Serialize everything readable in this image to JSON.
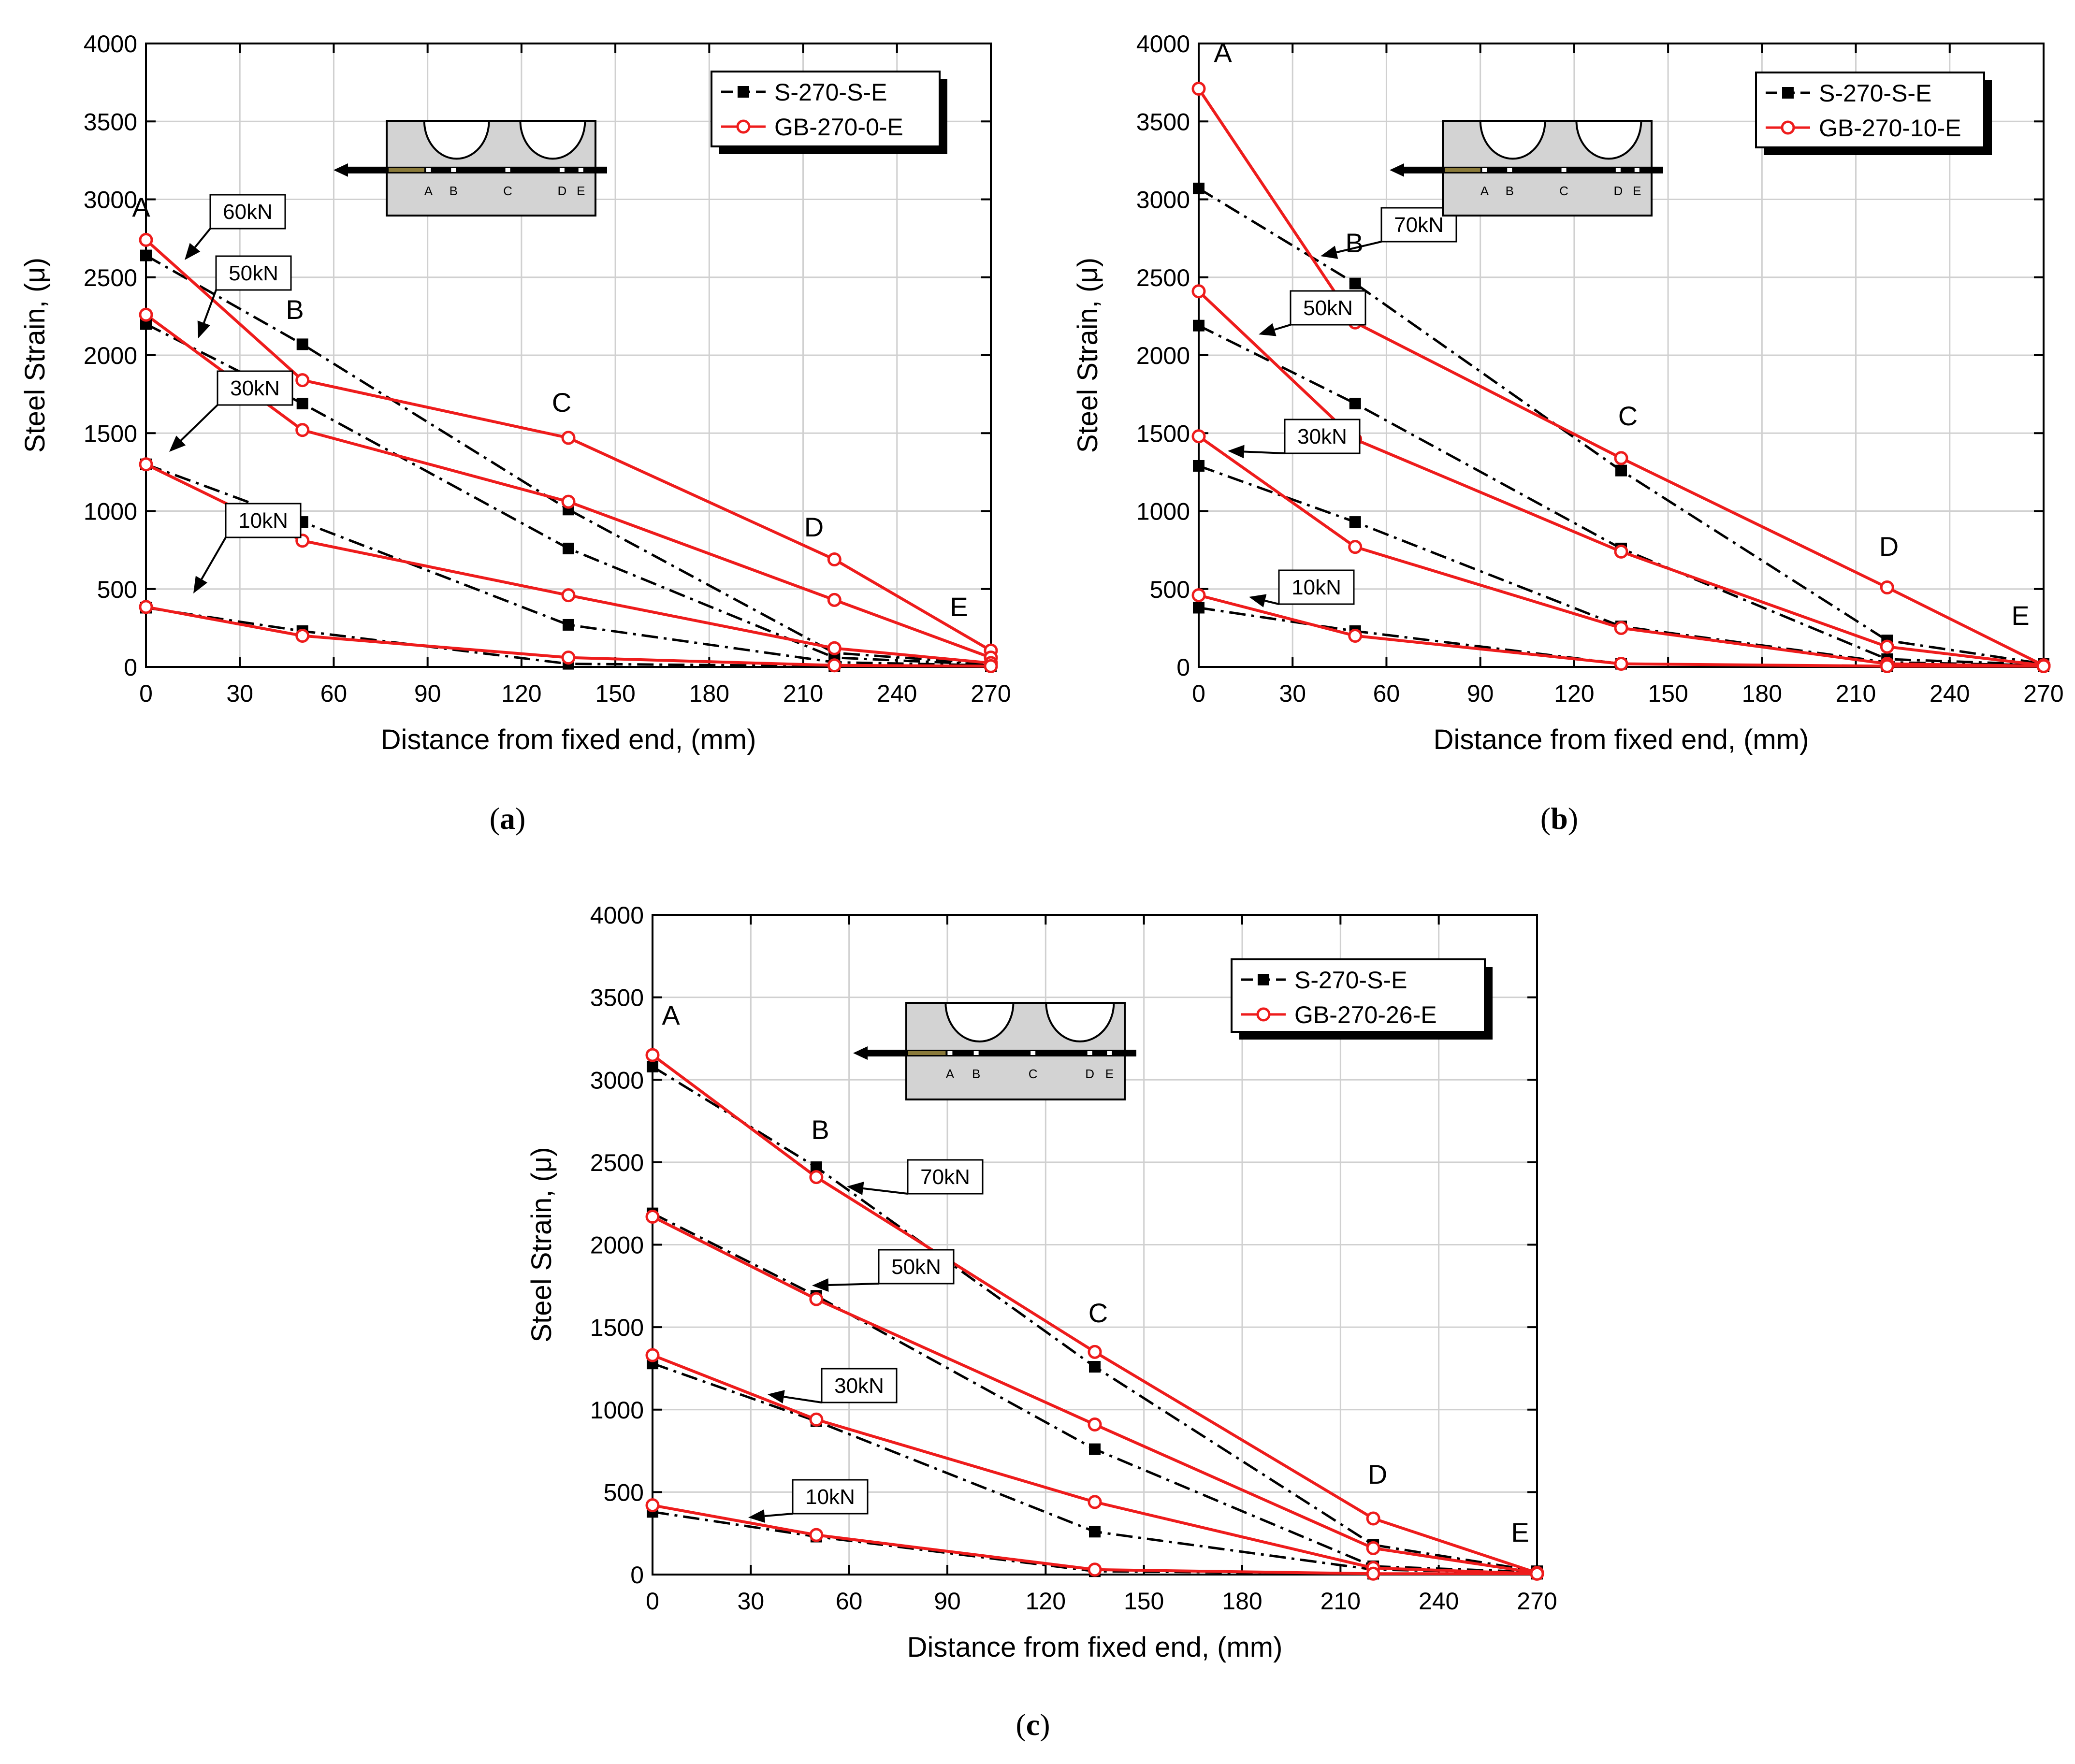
{
  "chart_data": [
    {
      "type": "line",
      "panel_label": "a",
      "xlabel": "Distance from fixed end, (mm)",
      "ylabel": "Steel Strain, (μ)",
      "xlim": [
        0,
        270
      ],
      "ylim": [
        0,
        4000
      ],
      "xticks": [
        0,
        30,
        60,
        90,
        120,
        150,
        180,
        210,
        240,
        270
      ],
      "yticks": [
        0,
        500,
        1000,
        1500,
        2000,
        2500,
        3000,
        3500,
        4000
      ],
      "grid": true,
      "legend": {
        "position": "top-right",
        "entries": [
          "S-270-S-E",
          "GB-270-0-E"
        ]
      },
      "point_labels": [
        "A",
        "B",
        "C",
        "D",
        "E"
      ],
      "series": [
        {
          "name": "S-270-S-E",
          "load": "60kN",
          "x": [
            0,
            50,
            135,
            220,
            270
          ],
          "y": [
            2640,
            2070,
            1010,
            90,
            20
          ]
        },
        {
          "name": "S-270-S-E",
          "load": "50kN",
          "x": [
            0,
            50,
            135,
            220,
            270
          ],
          "y": [
            2200,
            1690,
            760,
            60,
            15
          ]
        },
        {
          "name": "S-270-S-E",
          "load": "30kN",
          "x": [
            0,
            50,
            135,
            220,
            270
          ],
          "y": [
            1300,
            930,
            270,
            30,
            10
          ]
        },
        {
          "name": "S-270-S-E",
          "load": "10kN",
          "x": [
            0,
            50,
            135,
            220,
            270
          ],
          "y": [
            380,
            230,
            20,
            5,
            5
          ]
        },
        {
          "name": "GB-270-0-E",
          "load": "60kN",
          "x": [
            0,
            50,
            135,
            220,
            270
          ],
          "y": [
            2740,
            1840,
            1470,
            690,
            105
          ]
        },
        {
          "name": "GB-270-0-E",
          "load": "50kN",
          "x": [
            0,
            50,
            135,
            220,
            270
          ],
          "y": [
            2260,
            1520,
            1060,
            430,
            60
          ]
        },
        {
          "name": "GB-270-0-E",
          "load": "30kN",
          "x": [
            0,
            50,
            135,
            220,
            270
          ],
          "y": [
            1300,
            810,
            460,
            120,
            25
          ]
        },
        {
          "name": "GB-270-0-E",
          "load": "10kN",
          "x": [
            0,
            50,
            135,
            220,
            270
          ],
          "y": [
            385,
            200,
            60,
            10,
            5
          ]
        }
      ],
      "load_labels": [
        "60kN",
        "50kN",
        "30kN",
        "10kN"
      ],
      "inset_labels": [
        "A",
        "B",
        "C",
        "D",
        "E"
      ]
    },
    {
      "type": "line",
      "panel_label": "b",
      "xlabel": "Distance from fixed end, (mm)",
      "ylabel": "Steel Strain, (μ)",
      "xlim": [
        0,
        270
      ],
      "ylim": [
        0,
        4000
      ],
      "xticks": [
        0,
        30,
        60,
        90,
        120,
        150,
        180,
        210,
        240,
        270
      ],
      "yticks": [
        0,
        500,
        1000,
        1500,
        2000,
        2500,
        3000,
        3500,
        4000
      ],
      "grid": true,
      "legend": {
        "position": "top-right",
        "entries": [
          "S-270-S-E",
          "GB-270-10-E"
        ]
      },
      "point_labels": [
        "A",
        "B",
        "C",
        "D",
        "E"
      ],
      "series": [
        {
          "name": "S-270-S-E",
          "load": "70kN",
          "x": [
            0,
            50,
            135,
            220,
            270
          ],
          "y": [
            3070,
            2460,
            1260,
            170,
            20
          ]
        },
        {
          "name": "S-270-S-E",
          "load": "50kN",
          "x": [
            0,
            50,
            135,
            220,
            270
          ],
          "y": [
            2190,
            1690,
            760,
            50,
            15
          ]
        },
        {
          "name": "S-270-S-E",
          "load": "30kN",
          "x": [
            0,
            50,
            135,
            220,
            270
          ],
          "y": [
            1290,
            930,
            260,
            30,
            10
          ]
        },
        {
          "name": "S-270-S-E",
          "load": "10kN",
          "x": [
            0,
            50,
            135,
            220,
            270
          ],
          "y": [
            380,
            230,
            20,
            5,
            5
          ]
        },
        {
          "name": "GB-270-10-E",
          "load": "70kN",
          "x": [
            0,
            50,
            135,
            220,
            270
          ],
          "y": [
            3710,
            2210,
            1340,
            510,
            10
          ]
        },
        {
          "name": "GB-270-10-E",
          "load": "50kN",
          "x": [
            0,
            50,
            135,
            220,
            270
          ],
          "y": [
            2410,
            1460,
            740,
            130,
            10
          ]
        },
        {
          "name": "GB-270-10-E",
          "load": "30kN",
          "x": [
            0,
            50,
            135,
            220,
            270
          ],
          "y": [
            1480,
            770,
            250,
            20,
            5
          ]
        },
        {
          "name": "GB-270-10-E",
          "load": "10kN",
          "x": [
            0,
            50,
            135,
            220,
            270
          ],
          "y": [
            460,
            200,
            20,
            5,
            5
          ]
        }
      ],
      "load_labels": [
        "70kN",
        "50kN",
        "30kN",
        "10kN"
      ],
      "inset_labels": [
        "A",
        "B",
        "C",
        "D",
        "E"
      ]
    },
    {
      "type": "line",
      "panel_label": "c",
      "xlabel": "Distance from fixed end, (mm)",
      "ylabel": "Steel Strain, (μ)",
      "xlim": [
        0,
        270
      ],
      "ylim": [
        0,
        4000
      ],
      "xticks": [
        0,
        30,
        60,
        90,
        120,
        150,
        180,
        210,
        240,
        270
      ],
      "yticks": [
        0,
        500,
        1000,
        1500,
        2000,
        2500,
        3000,
        3500,
        4000
      ],
      "grid": true,
      "legend": {
        "position": "top-right",
        "entries": [
          "S-270-S-E",
          "GB-270-26-E"
        ]
      },
      "point_labels": [
        "A",
        "B",
        "C",
        "D",
        "E"
      ],
      "series": [
        {
          "name": "S-270-S-E",
          "load": "70kN",
          "x": [
            0,
            50,
            135,
            220,
            270
          ],
          "y": [
            3080,
            2470,
            1260,
            180,
            20
          ]
        },
        {
          "name": "S-270-S-E",
          "load": "50kN",
          "x": [
            0,
            50,
            135,
            220,
            270
          ],
          "y": [
            2190,
            1690,
            760,
            50,
            15
          ]
        },
        {
          "name": "S-270-S-E",
          "load": "30kN",
          "x": [
            0,
            50,
            135,
            220,
            270
          ],
          "y": [
            1280,
            930,
            260,
            30,
            10
          ]
        },
        {
          "name": "S-270-S-E",
          "load": "10kN",
          "x": [
            0,
            50,
            135,
            220,
            270
          ],
          "y": [
            380,
            230,
            20,
            5,
            5
          ]
        },
        {
          "name": "GB-270-26-E",
          "load": "70kN",
          "x": [
            0,
            50,
            135,
            220,
            270
          ],
          "y": [
            3150,
            2410,
            1350,
            340,
            10
          ]
        },
        {
          "name": "GB-270-26-E",
          "load": "50kN",
          "x": [
            0,
            50,
            135,
            220,
            270
          ],
          "y": [
            2170,
            1670,
            910,
            160,
            10
          ]
        },
        {
          "name": "GB-270-26-E",
          "load": "30kN",
          "x": [
            0,
            50,
            135,
            220,
            270
          ],
          "y": [
            1330,
            940,
            440,
            40,
            5
          ]
        },
        {
          "name": "GB-270-26-E",
          "load": "10kN",
          "x": [
            0,
            50,
            135,
            220,
            270
          ],
          "y": [
            420,
            240,
            30,
            5,
            5
          ]
        }
      ],
      "load_labels": [
        "70kN",
        "50kN",
        "30kN",
        "10kN"
      ],
      "inset_labels": [
        "A",
        "B",
        "C",
        "D",
        "E"
      ]
    }
  ],
  "colors": {
    "black_series": "#000000",
    "red_series": "#ee1c1c",
    "grid": "#d0d0d0",
    "inset_fill": "#d3d3d3"
  }
}
